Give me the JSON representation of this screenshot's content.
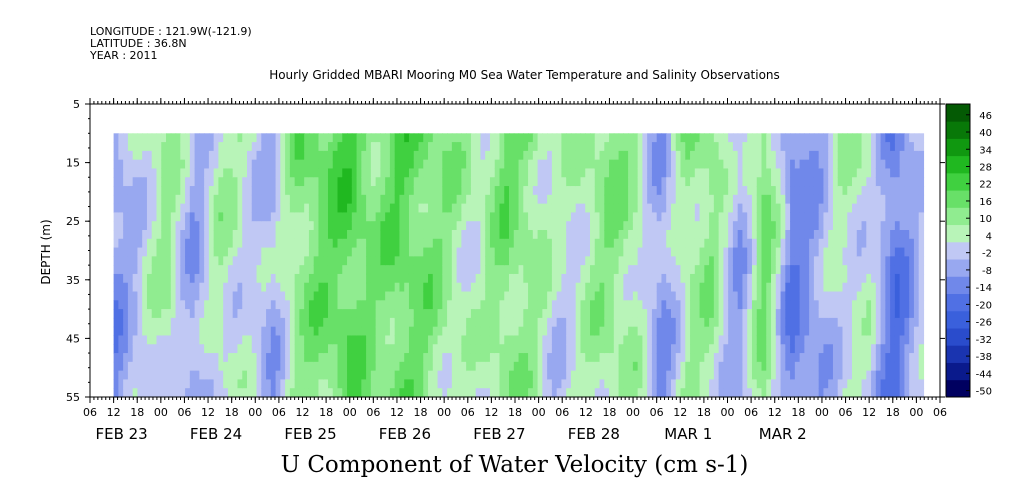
{
  "header": {
    "longitude": "LONGITUDE : 121.9W(-121.9)",
    "latitude": "LATITUDE : 36.8N",
    "year": "YEAR : 2011"
  },
  "chart_data": {
    "type": "heatmap",
    "title": "Hourly Gridded MBARI Mooring M0 Sea Water Temperature and Salinity Observations",
    "main_label": "U Component of Water Velocity (cm s-1)",
    "ylabel": "DEPTH (m)",
    "ylim": [
      55,
      5
    ],
    "y_ticks": [
      5,
      15,
      25,
      35,
      45,
      55
    ],
    "data_depth_range": [
      10,
      55
    ],
    "x_range_hours": [
      "FEB 22 06:00",
      "MAR 2 06:00"
    ],
    "hour_ticks": [
      "06",
      "12",
      "18",
      "00",
      "06",
      "12",
      "18",
      "00",
      "06",
      "12",
      "18",
      "00",
      "06",
      "12",
      "18",
      "00",
      "06",
      "12",
      "18",
      "00",
      "06",
      "12",
      "18",
      "00",
      "06",
      "12",
      "18",
      "00",
      "06",
      "12",
      "18",
      "00",
      "06",
      "12",
      "18",
      "00",
      "06"
    ],
    "day_labels": [
      "FEB 23",
      "FEB 24",
      "FEB 25",
      "FEB 26",
      "FEB 27",
      "FEB 28",
      "MAR  1",
      "MAR  2"
    ],
    "colorbar": {
      "levels": [
        -50,
        -44,
        -38,
        -32,
        -26,
        -20,
        -14,
        -8,
        -2,
        4,
        10,
        16,
        22,
        28,
        34,
        40,
        46
      ],
      "labels": [
        "46",
        "40",
        "34",
        "28",
        "22",
        "16",
        "10",
        "4",
        "-2",
        "-8",
        "-14",
        "-20",
        "-26",
        "-32",
        "-38",
        "-44",
        "-50"
      ]
    },
    "time_profile_u": [
      {
        "t": "FEB 22 12:00",
        "u": -6
      },
      {
        "t": "FEB 22 18:00",
        "u": 4
      },
      {
        "t": "FEB 23 00:00",
        "u": 12
      },
      {
        "t": "FEB 23 06:00",
        "u": -4
      },
      {
        "t": "FEB 23 12:00",
        "u": 10
      },
      {
        "t": "FEB 23 18:00",
        "u": 6
      },
      {
        "t": "FEB 24 00:00",
        "u": -2
      },
      {
        "t": "FEB 24 06:00",
        "u": 16
      },
      {
        "t": "FEB 24 12:00",
        "u": 20
      },
      {
        "t": "FEB 24 18:00",
        "u": 24
      },
      {
        "t": "FEB 25 00:00",
        "u": 16
      },
      {
        "t": "FEB 25 06:00",
        "u": 22
      },
      {
        "t": "FEB 25 12:00",
        "u": 18
      },
      {
        "t": "FEB 25 18:00",
        "u": 12
      },
      {
        "t": "FEB 26 00:00",
        "u": 8
      },
      {
        "t": "FEB 26 06:00",
        "u": 18
      },
      {
        "t": "FEB 26 12:00",
        "u": 14
      },
      {
        "t": "FEB 26 18:00",
        "u": 4
      },
      {
        "t": "FEB 27 00:00",
        "u": 10
      },
      {
        "t": "FEB 27 06:00",
        "u": 16
      },
      {
        "t": "FEB 27 12:00",
        "u": 12
      },
      {
        "t": "FEB 27 18:00",
        "u": -6
      },
      {
        "t": "FEB 28 00:00",
        "u": 12
      },
      {
        "t": "FEB 28 06:00",
        "u": 14
      },
      {
        "t": "FEB 28 12:00",
        "u": -4
      },
      {
        "t": "FEB 28 18:00",
        "u": 20
      },
      {
        "t": "MAR 1 00:00",
        "u": -10
      },
      {
        "t": "MAR 1 06:00",
        "u": -4
      },
      {
        "t": "MAR 1 12:00",
        "u": 8
      },
      {
        "t": "MAR 1 18:00",
        "u": 6
      },
      {
        "t": "MAR 2 00:00",
        "u": -14
      },
      {
        "t": "MAR 2 06:00",
        "u": 2
      }
    ]
  }
}
